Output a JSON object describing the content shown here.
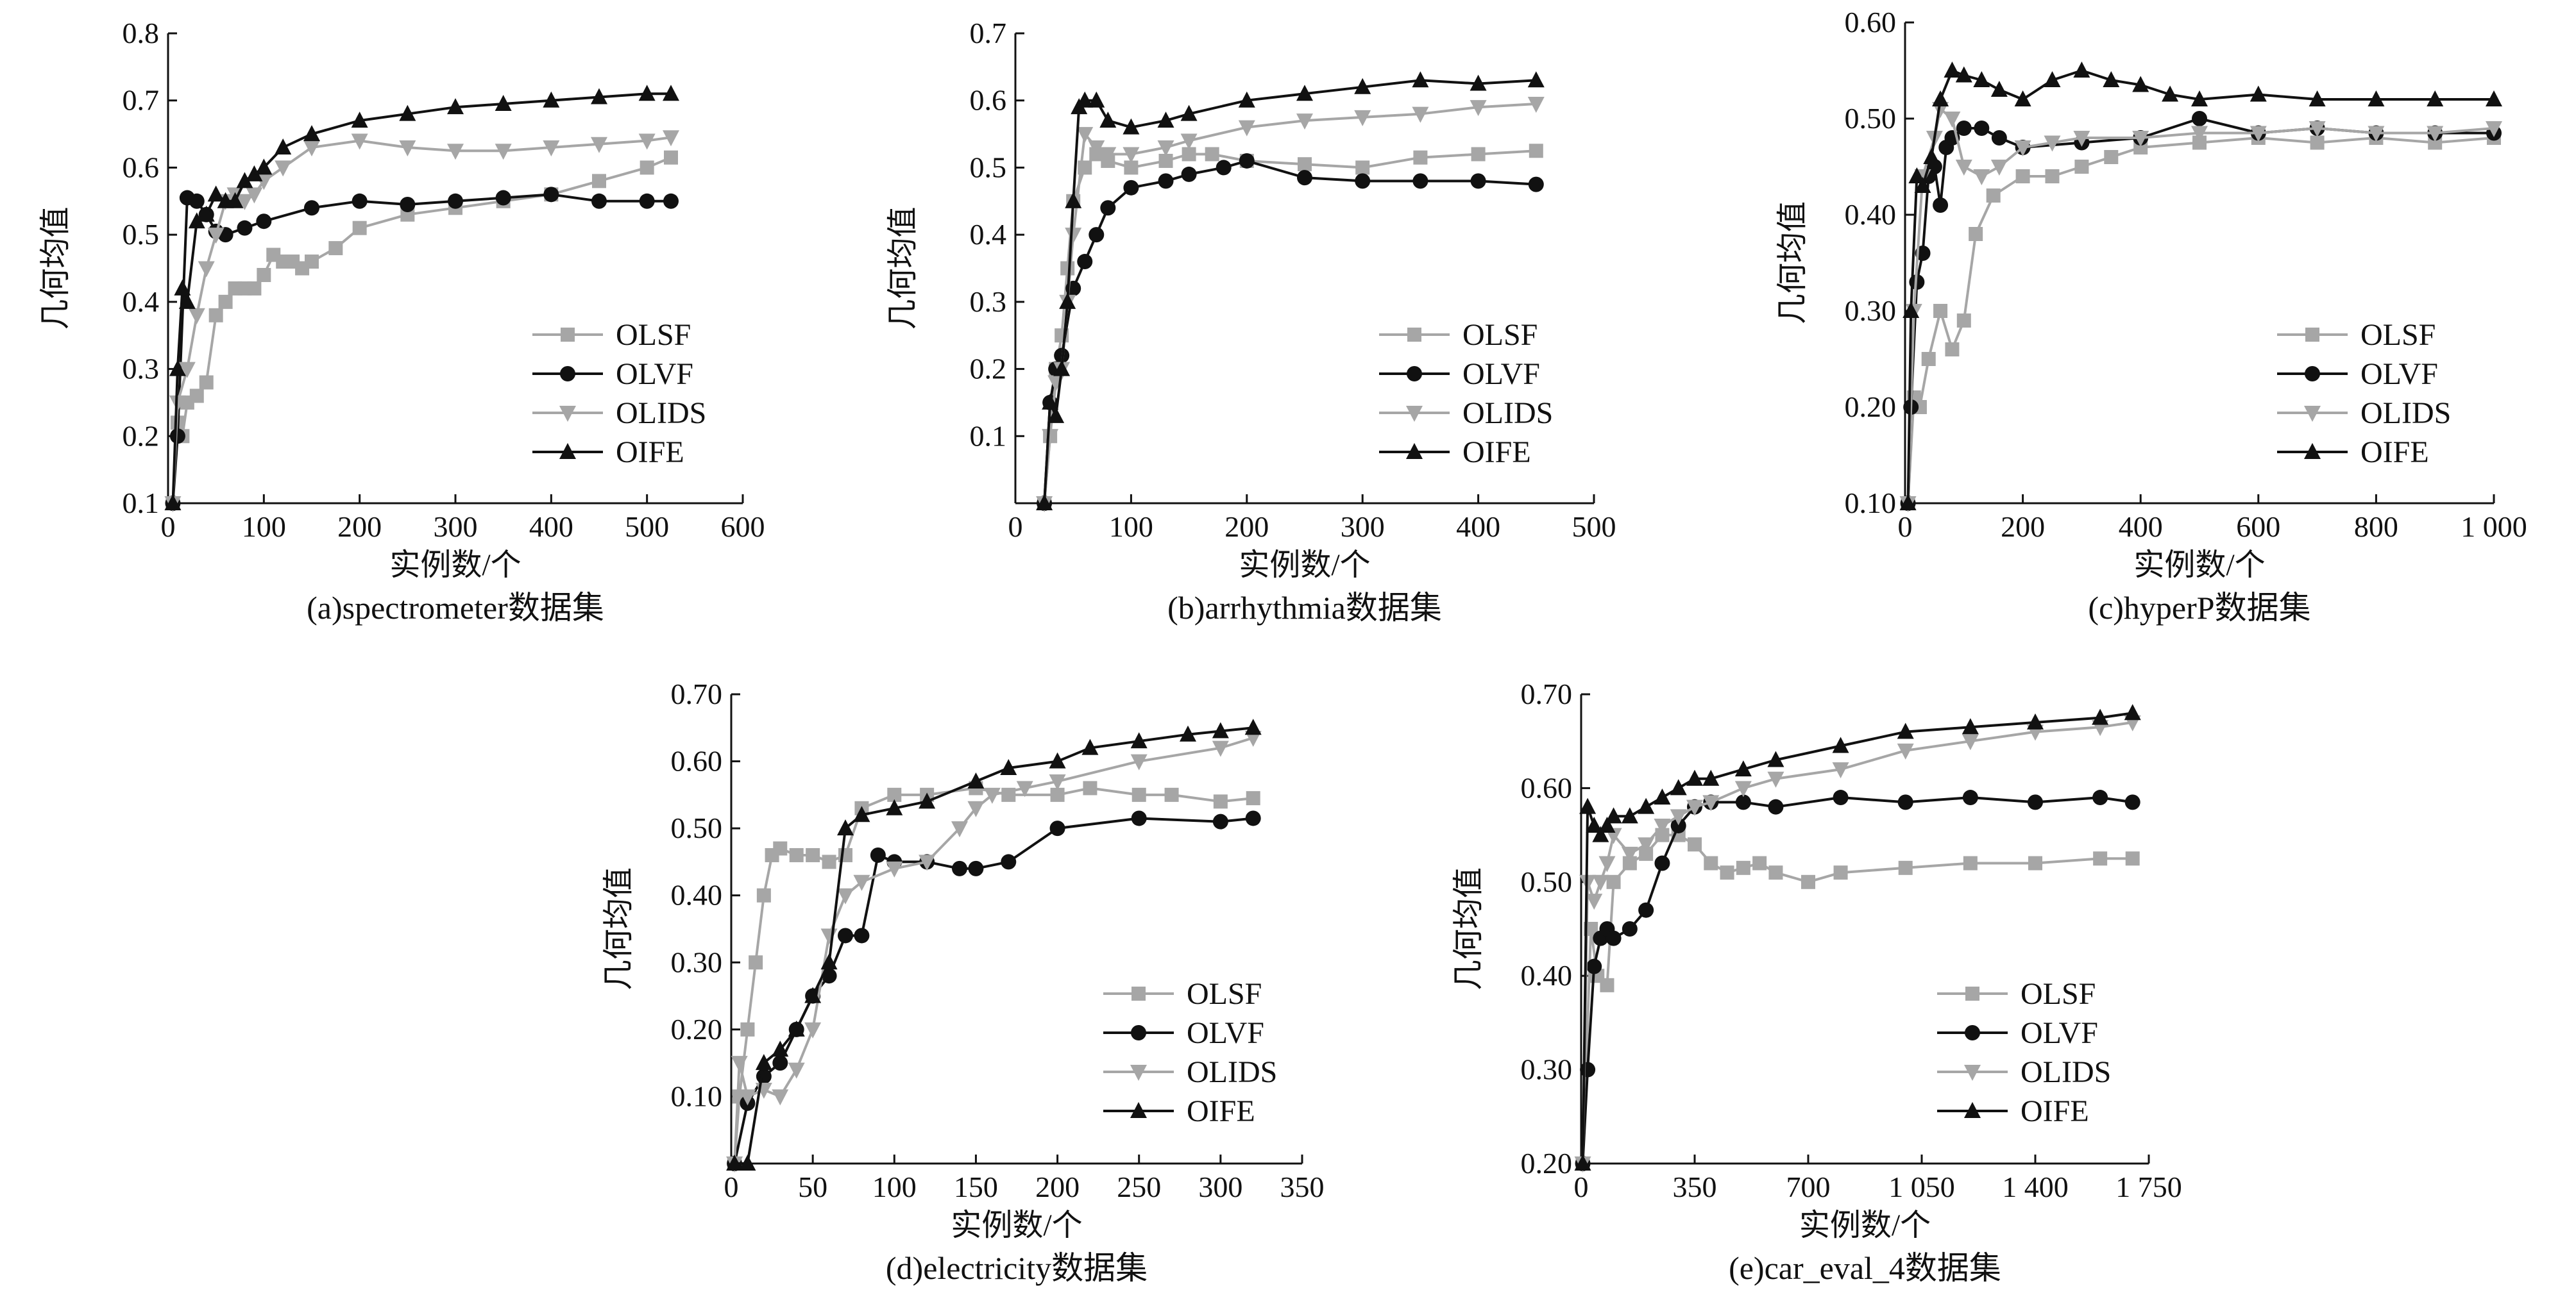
{
  "figure": {
    "captions": [
      "(a)spectrometer数据集",
      "(b)arrhythmia数据集",
      "(c)hyperP数据集",
      "(d)electricity数据集",
      "(e)car_eval_4数据集"
    ]
  },
  "styles": {
    "OLSF": {
      "color": "#a6a6a6",
      "marker": "square"
    },
    "OLVF": {
      "color": "#111111",
      "marker": "circle"
    },
    "OLIDS": {
      "color": "#a6a6a6",
      "marker": "triangle-down"
    },
    "OIFE": {
      "color": "#111111",
      "marker": "triangle-up"
    }
  },
  "chart_data": [
    {
      "type": "line",
      "caption": "(a)spectrometer数据集",
      "xlabel": "实例数/个",
      "ylabel": "几何均值",
      "xlim": [
        0,
        600
      ],
      "ylim": [
        0.1,
        0.8
      ],
      "xticks": [
        "0",
        "100",
        "200",
        "300",
        "400",
        "500",
        "600"
      ],
      "yticks": [
        "0.1",
        "0.2",
        "0.3",
        "0.4",
        "0.5",
        "0.6",
        "0.7",
        "0.8"
      ],
      "legend": [
        "OLSF",
        "OLVF",
        "OLIDS",
        "OIFE"
      ],
      "legend_position": "bottom-right",
      "series": [
        {
          "name": "OLSF",
          "x": [
            5,
            10,
            15,
            20,
            30,
            40,
            50,
            60,
            70,
            80,
            90,
            100,
            110,
            120,
            130,
            140,
            150,
            175,
            200,
            250,
            300,
            350,
            400,
            450,
            500,
            525
          ],
          "y": [
            0.1,
            0.22,
            0.2,
            0.25,
            0.26,
            0.28,
            0.38,
            0.4,
            0.42,
            0.42,
            0.42,
            0.44,
            0.47,
            0.46,
            0.46,
            0.45,
            0.46,
            0.48,
            0.51,
            0.53,
            0.54,
            0.55,
            0.56,
            0.58,
            0.6,
            0.615
          ]
        },
        {
          "name": "OLVF",
          "x": [
            5,
            10,
            20,
            30,
            40,
            50,
            60,
            80,
            100,
            150,
            200,
            250,
            300,
            350,
            400,
            450,
            500,
            525
          ],
          "y": [
            0.1,
            0.2,
            0.555,
            0.55,
            0.53,
            0.505,
            0.5,
            0.51,
            0.52,
            0.54,
            0.55,
            0.545,
            0.55,
            0.555,
            0.56,
            0.55,
            0.55,
            0.55
          ]
        },
        {
          "name": "OLIDS",
          "x": [
            5,
            10,
            20,
            30,
            40,
            50,
            60,
            70,
            80,
            90,
            100,
            120,
            150,
            200,
            250,
            300,
            350,
            400,
            450,
            500,
            525
          ],
          "y": [
            0.1,
            0.25,
            0.3,
            0.38,
            0.45,
            0.5,
            0.55,
            0.56,
            0.55,
            0.56,
            0.58,
            0.6,
            0.63,
            0.64,
            0.63,
            0.625,
            0.625,
            0.63,
            0.635,
            0.64,
            0.645
          ]
        },
        {
          "name": "OIFE",
          "x": [
            5,
            10,
            15,
            20,
            30,
            40,
            50,
            60,
            70,
            80,
            90,
            100,
            120,
            150,
            200,
            250,
            300,
            350,
            400,
            450,
            500,
            525
          ],
          "y": [
            0.1,
            0.3,
            0.42,
            0.4,
            0.52,
            0.53,
            0.56,
            0.55,
            0.55,
            0.58,
            0.59,
            0.6,
            0.63,
            0.65,
            0.67,
            0.68,
            0.69,
            0.695,
            0.7,
            0.705,
            0.71,
            0.71
          ]
        }
      ]
    },
    {
      "type": "line",
      "caption": "(b)arrhythmia数据集",
      "xlabel": "实例数/个",
      "ylabel": "几何均值",
      "xlim": [
        0,
        500
      ],
      "ylim": [
        0.0,
        0.7
      ],
      "xticks": [
        "0",
        "100",
        "200",
        "300",
        "400",
        "500"
      ],
      "yticks": [
        "",
        "0.1",
        "0.2",
        "0.3",
        "0.4",
        "0.5",
        "0.6",
        "0.7"
      ],
      "legend": [
        "OLSF",
        "OLVF",
        "OLIDS",
        "OIFE"
      ],
      "legend_position": "bottom-right",
      "series": [
        {
          "name": "OLSF",
          "x": [
            25,
            30,
            35,
            40,
            45,
            50,
            60,
            70,
            80,
            100,
            130,
            150,
            170,
            200,
            250,
            300,
            350,
            400,
            450
          ],
          "y": [
            0.0,
            0.1,
            0.2,
            0.25,
            0.35,
            0.45,
            0.5,
            0.52,
            0.51,
            0.5,
            0.51,
            0.52,
            0.52,
            0.51,
            0.505,
            0.5,
            0.515,
            0.52,
            0.525
          ]
        },
        {
          "name": "OLVF",
          "x": [
            25,
            30,
            35,
            40,
            50,
            60,
            70,
            80,
            100,
            130,
            150,
            180,
            200,
            250,
            300,
            350,
            400,
            450
          ],
          "y": [
            0.0,
            0.15,
            0.2,
            0.22,
            0.32,
            0.36,
            0.4,
            0.44,
            0.47,
            0.48,
            0.49,
            0.5,
            0.51,
            0.485,
            0.48,
            0.48,
            0.48,
            0.475
          ]
        },
        {
          "name": "OLIDS",
          "x": [
            25,
            30,
            35,
            40,
            45,
            50,
            60,
            70,
            80,
            100,
            130,
            150,
            200,
            250,
            300,
            350,
            400,
            450
          ],
          "y": [
            0.0,
            0.1,
            0.18,
            0.2,
            0.3,
            0.4,
            0.55,
            0.53,
            0.52,
            0.52,
            0.53,
            0.54,
            0.56,
            0.57,
            0.575,
            0.58,
            0.59,
            0.595
          ]
        },
        {
          "name": "OIFE",
          "x": [
            25,
            30,
            35,
            40,
            45,
            50,
            55,
            60,
            70,
            80,
            100,
            130,
            150,
            200,
            250,
            300,
            350,
            400,
            450
          ],
          "y": [
            0.0,
            0.15,
            0.13,
            0.2,
            0.3,
            0.45,
            0.59,
            0.6,
            0.6,
            0.57,
            0.56,
            0.57,
            0.58,
            0.6,
            0.61,
            0.62,
            0.63,
            0.625,
            0.63
          ]
        }
      ]
    },
    {
      "type": "line",
      "caption": "(c)hyperP数据集",
      "xlabel": "实例数/个",
      "ylabel": "几何均值",
      "xlim": [
        0,
        1000
      ],
      "ylim": [
        0.1,
        0.6
      ],
      "xticks": [
        "0",
        "200",
        "400",
        "600",
        "800",
        "1 000"
      ],
      "yticks": [
        "0.10",
        "0.20",
        "0.30",
        "0.40",
        "0.50",
        "0.60"
      ],
      "legend": [
        "OLSF",
        "OLVF",
        "OLIDS",
        "OIFE"
      ],
      "legend_position": "bottom-right",
      "series": [
        {
          "name": "OLSF",
          "x": [
            5,
            15,
            25,
            40,
            60,
            80,
            100,
            120,
            150,
            200,
            250,
            300,
            350,
            400,
            500,
            600,
            700,
            800,
            900,
            1000
          ],
          "y": [
            0.1,
            0.21,
            0.2,
            0.25,
            0.3,
            0.26,
            0.29,
            0.38,
            0.42,
            0.44,
            0.44,
            0.45,
            0.46,
            0.47,
            0.475,
            0.48,
            0.475,
            0.48,
            0.475,
            0.48
          ]
        },
        {
          "name": "OLVF",
          "x": [
            5,
            10,
            20,
            30,
            40,
            50,
            60,
            70,
            80,
            100,
            130,
            160,
            200,
            300,
            400,
            500,
            600,
            700,
            800,
            900,
            1000
          ],
          "y": [
            0.1,
            0.2,
            0.33,
            0.36,
            0.44,
            0.45,
            0.41,
            0.47,
            0.48,
            0.49,
            0.49,
            0.48,
            0.47,
            0.475,
            0.48,
            0.5,
            0.485,
            0.49,
            0.485,
            0.485,
            0.485
          ]
        },
        {
          "name": "OLIDS",
          "x": [
            5,
            15,
            30,
            50,
            60,
            80,
            100,
            130,
            160,
            200,
            250,
            300,
            400,
            500,
            600,
            700,
            800,
            900,
            1000
          ],
          "y": [
            0.1,
            0.3,
            0.44,
            0.48,
            0.51,
            0.5,
            0.45,
            0.44,
            0.45,
            0.47,
            0.475,
            0.48,
            0.48,
            0.485,
            0.485,
            0.49,
            0.485,
            0.485,
            0.49
          ]
        },
        {
          "name": "OIFE",
          "x": [
            5,
            10,
            20,
            30,
            45,
            60,
            80,
            100,
            130,
            160,
            200,
            250,
            300,
            350,
            400,
            450,
            500,
            600,
            700,
            800,
            900,
            1000
          ],
          "y": [
            0.1,
            0.3,
            0.44,
            0.43,
            0.46,
            0.52,
            0.55,
            0.545,
            0.54,
            0.53,
            0.52,
            0.54,
            0.55,
            0.54,
            0.535,
            0.525,
            0.52,
            0.525,
            0.52,
            0.52,
            0.52,
            0.52
          ]
        }
      ]
    },
    {
      "type": "line",
      "caption": "(d)electricity数据集",
      "xlabel": "实例数/个",
      "ylabel": "几何均值",
      "xlim": [
        0,
        350
      ],
      "ylim": [
        0.0,
        0.7
      ],
      "xticks": [
        "0",
        "50",
        "100",
        "150",
        "200",
        "250",
        "300",
        "350"
      ],
      "yticks": [
        "",
        "0.10",
        "0.20",
        "0.30",
        "0.40",
        "0.50",
        "0.60",
        "0.70"
      ],
      "legend": [
        "OLSF",
        "OLVF",
        "OLIDS",
        "OIFE"
      ],
      "legend_position": "bottom-right",
      "series": [
        {
          "name": "OLSF",
          "x": [
            2,
            5,
            10,
            15,
            20,
            25,
            30,
            40,
            50,
            60,
            70,
            80,
            100,
            120,
            150,
            170,
            200,
            220,
            250,
            270,
            300,
            320
          ],
          "y": [
            0.0,
            0.1,
            0.2,
            0.3,
            0.4,
            0.46,
            0.47,
            0.46,
            0.46,
            0.45,
            0.46,
            0.53,
            0.55,
            0.55,
            0.56,
            0.55,
            0.55,
            0.56,
            0.55,
            0.55,
            0.54,
            0.545
          ]
        },
        {
          "name": "OLVF",
          "x": [
            2,
            10,
            20,
            30,
            40,
            50,
            60,
            70,
            80,
            90,
            100,
            120,
            140,
            150,
            170,
            200,
            250,
            300,
            320
          ],
          "y": [
            0.0,
            0.09,
            0.13,
            0.15,
            0.2,
            0.25,
            0.28,
            0.34,
            0.34,
            0.46,
            0.45,
            0.45,
            0.44,
            0.44,
            0.45,
            0.5,
            0.515,
            0.51,
            0.515
          ]
        },
        {
          "name": "OLIDS",
          "x": [
            2,
            5,
            10,
            20,
            30,
            40,
            50,
            60,
            70,
            80,
            100,
            120,
            140,
            150,
            160,
            180,
            200,
            250,
            300,
            320
          ],
          "y": [
            0.0,
            0.15,
            0.1,
            0.11,
            0.1,
            0.14,
            0.2,
            0.34,
            0.4,
            0.42,
            0.44,
            0.45,
            0.5,
            0.53,
            0.55,
            0.56,
            0.57,
            0.6,
            0.62,
            0.635
          ]
        },
        {
          "name": "OIFE",
          "x": [
            2,
            10,
            20,
            30,
            40,
            50,
            60,
            70,
            80,
            100,
            120,
            150,
            170,
            200,
            220,
            250,
            280,
            300,
            320
          ],
          "y": [
            0.0,
            0.0,
            0.15,
            0.17,
            0.2,
            0.25,
            0.3,
            0.5,
            0.52,
            0.53,
            0.54,
            0.57,
            0.59,
            0.6,
            0.62,
            0.63,
            0.64,
            0.645,
            0.65
          ]
        }
      ]
    },
    {
      "type": "line",
      "caption": "(e)car_eval_4数据集",
      "xlabel": "实例数/个",
      "ylabel": "几何均值",
      "xlim": [
        0,
        1750
      ],
      "ylim": [
        0.2,
        0.7
      ],
      "xticks": [
        "0",
        "350",
        "700",
        "1 050",
        "1 400",
        "1 750"
      ],
      "yticks": [
        "0.20",
        "0.30",
        "0.40",
        "0.50",
        "0.60",
        "0.70"
      ],
      "legend": [
        "OLSF",
        "OLVF",
        "OLIDS",
        "OIFE"
      ],
      "legend_position": "bottom-right",
      "series": [
        {
          "name": "OLSF",
          "x": [
            5,
            30,
            50,
            80,
            100,
            150,
            200,
            250,
            300,
            350,
            400,
            450,
            500,
            550,
            600,
            700,
            800,
            1000,
            1200,
            1400,
            1600,
            1700
          ],
          "y": [
            0.2,
            0.45,
            0.4,
            0.39,
            0.5,
            0.52,
            0.53,
            0.55,
            0.55,
            0.54,
            0.52,
            0.51,
            0.515,
            0.52,
            0.51,
            0.5,
            0.51,
            0.515,
            0.52,
            0.52,
            0.525,
            0.525
          ]
        },
        {
          "name": "OLVF",
          "x": [
            5,
            20,
            40,
            60,
            80,
            100,
            150,
            200,
            250,
            300,
            350,
            400,
            500,
            600,
            800,
            1000,
            1200,
            1400,
            1600,
            1700
          ],
          "y": [
            0.2,
            0.3,
            0.41,
            0.44,
            0.45,
            0.44,
            0.45,
            0.47,
            0.52,
            0.56,
            0.58,
            0.585,
            0.585,
            0.58,
            0.59,
            0.585,
            0.59,
            0.585,
            0.59,
            0.585
          ]
        },
        {
          "name": "OLIDS",
          "x": [
            5,
            20,
            40,
            60,
            80,
            100,
            150,
            200,
            250,
            300,
            350,
            400,
            500,
            600,
            800,
            1000,
            1200,
            1400,
            1600,
            1700
          ],
          "y": [
            0.2,
            0.5,
            0.48,
            0.5,
            0.52,
            0.55,
            0.53,
            0.54,
            0.56,
            0.57,
            0.58,
            0.585,
            0.6,
            0.61,
            0.62,
            0.64,
            0.65,
            0.66,
            0.665,
            0.67
          ]
        },
        {
          "name": "OIFE",
          "x": [
            5,
            20,
            40,
            60,
            80,
            100,
            150,
            200,
            250,
            300,
            350,
            400,
            500,
            600,
            800,
            1000,
            1200,
            1400,
            1600,
            1700
          ],
          "y": [
            0.2,
            0.58,
            0.56,
            0.55,
            0.56,
            0.57,
            0.57,
            0.58,
            0.59,
            0.6,
            0.61,
            0.61,
            0.62,
            0.63,
            0.645,
            0.66,
            0.665,
            0.67,
            0.675,
            0.68
          ]
        }
      ]
    }
  ]
}
